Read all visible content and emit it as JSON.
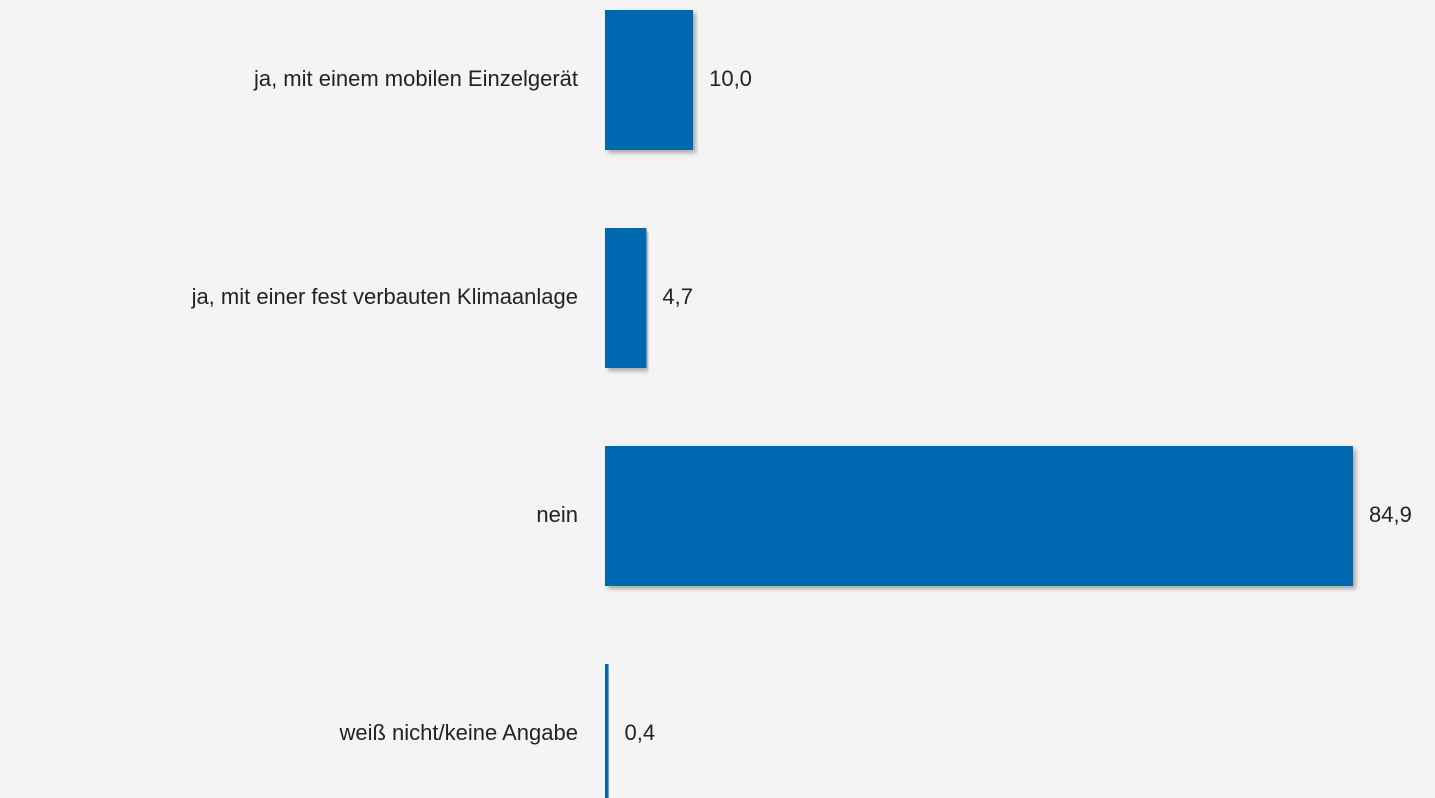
{
  "chart_data": {
    "type": "barh",
    "categories": [
      "ja, mit einem mobilen Einzelgerät",
      "ja, mit einer fest verbauten Klimaanlage",
      "nein",
      "weiß nicht/keine Angabe"
    ],
    "values": [
      10.0,
      4.7,
      84.9,
      0.4
    ],
    "value_labels": [
      "10,0",
      "4,7",
      "84,9",
      "0,4"
    ],
    "color": "#0068b0"
  }
}
